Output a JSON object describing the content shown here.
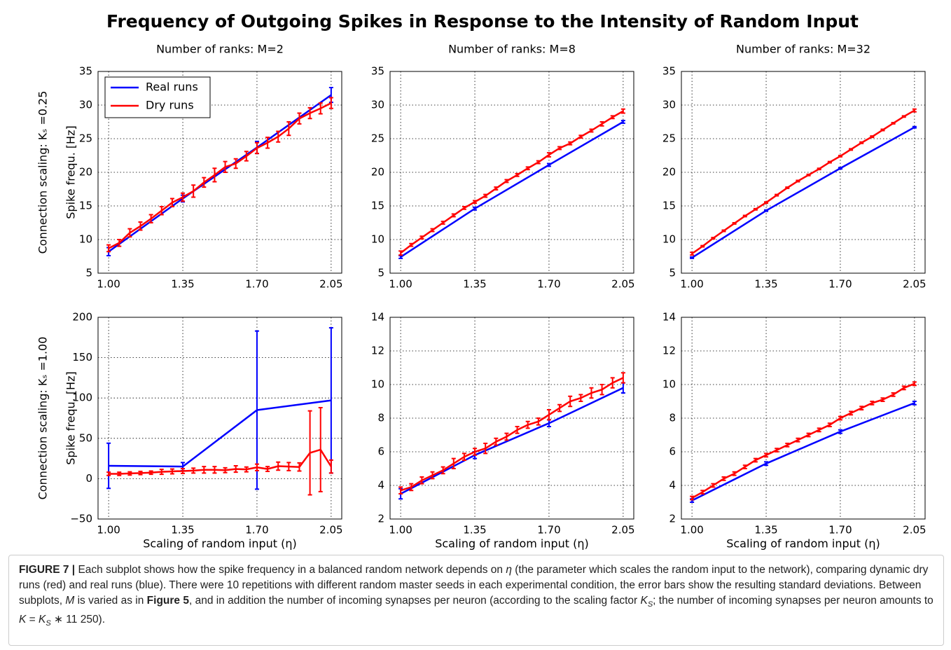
{
  "title": "Frequency of Outgoing Spikes in Response to the Intensity of Random Input",
  "chart_data": [
    {
      "type": "line",
      "title": "Number of ranks: M=2",
      "row_label": "Connection scaling: Kₛ =0.25",
      "ylabel": "Spike frequ. [Hz]",
      "legend": "upper left",
      "xlim": [
        0.95,
        2.1
      ],
      "ylim": [
        5,
        35
      ],
      "xticks": [
        {
          "value": 1.0,
          "label": "1.00"
        },
        {
          "value": 1.35,
          "label": "1.35"
        },
        {
          "value": 1.7,
          "label": "1.70"
        },
        {
          "value": 2.05,
          "label": "2.05"
        }
      ],
      "yticks": [
        5,
        10,
        15,
        20,
        25,
        30,
        35
      ],
      "grid": true,
      "series": [
        {
          "name": "Real runs",
          "color": "#0000ff",
          "x": [
            1.0,
            1.35,
            1.7,
            2.05
          ],
          "values": [
            8.2,
            16.1,
            23.7,
            31.5
          ],
          "errors": [
            0.6,
            0.5,
            0.9,
            1.1
          ]
        },
        {
          "name": "Dry runs",
          "color": "#ff0000",
          "x": [
            1.0,
            1.05,
            1.1,
            1.15,
            1.2,
            1.25,
            1.3,
            1.35,
            1.4,
            1.45,
            1.5,
            1.55,
            1.6,
            1.65,
            1.7,
            1.75,
            1.8,
            1.85,
            1.9,
            1.95,
            2.0,
            2.05
          ],
          "values": [
            8.7,
            9.5,
            11.0,
            12.0,
            13.1,
            14.3,
            15.5,
            16.3,
            17.2,
            18.5,
            19.6,
            20.8,
            21.3,
            22.4,
            23.6,
            24.4,
            25.3,
            26.5,
            28.0,
            28.8,
            29.5,
            30.3
          ],
          "errors": [
            0.5,
            0.5,
            0.6,
            0.6,
            0.6,
            0.6,
            0.6,
            0.6,
            0.9,
            0.7,
            1.0,
            0.8,
            0.7,
            0.7,
            0.8,
            0.8,
            0.8,
            1.0,
            0.8,
            0.8,
            0.8,
            0.8
          ]
        }
      ]
    },
    {
      "type": "line",
      "title": "Number of ranks: M=8",
      "xlim": [
        0.95,
        2.1
      ],
      "ylim": [
        5,
        35
      ],
      "xticks": [
        {
          "value": 1.0,
          "label": "1.00"
        },
        {
          "value": 1.35,
          "label": "1.35"
        },
        {
          "value": 1.7,
          "label": "1.70"
        },
        {
          "value": 2.05,
          "label": "2.05"
        }
      ],
      "yticks": [
        5,
        10,
        15,
        20,
        25,
        30,
        35
      ],
      "grid": true,
      "series": [
        {
          "color": "#0000ff",
          "x": [
            1.0,
            1.35,
            1.7,
            2.05
          ],
          "values": [
            7.4,
            14.6,
            21.1,
            27.5
          ],
          "errors": [
            0.2,
            0.2,
            0.2,
            0.2
          ]
        },
        {
          "color": "#ff0000",
          "x": [
            1.0,
            1.05,
            1.1,
            1.15,
            1.2,
            1.25,
            1.3,
            1.35,
            1.4,
            1.45,
            1.5,
            1.55,
            1.6,
            1.65,
            1.7,
            1.75,
            1.8,
            1.85,
            1.9,
            1.95,
            2.0,
            2.05
          ],
          "values": [
            8.0,
            9.2,
            10.3,
            11.4,
            12.5,
            13.6,
            14.7,
            15.6,
            16.5,
            17.6,
            18.7,
            19.6,
            20.6,
            21.5,
            22.6,
            23.6,
            24.3,
            25.3,
            26.2,
            27.2,
            28.2,
            29.1
          ],
          "errors": [
            0.3,
            0.2,
            0.2,
            0.2,
            0.2,
            0.2,
            0.2,
            0.2,
            0.2,
            0.2,
            0.2,
            0.2,
            0.2,
            0.2,
            0.3,
            0.2,
            0.2,
            0.2,
            0.2,
            0.3,
            0.2,
            0.3
          ]
        }
      ]
    },
    {
      "type": "line",
      "title": "Number of ranks: M=32",
      "xlim": [
        0.95,
        2.1
      ],
      "ylim": [
        5,
        35
      ],
      "xticks": [
        {
          "value": 1.0,
          "label": "1.00"
        },
        {
          "value": 1.35,
          "label": "1.35"
        },
        {
          "value": 1.7,
          "label": "1.70"
        },
        {
          "value": 2.05,
          "label": "2.05"
        }
      ],
      "yticks": [
        5,
        10,
        15,
        20,
        25,
        30,
        35
      ],
      "grid": true,
      "series": [
        {
          "color": "#0000ff",
          "x": [
            1.0,
            1.35,
            1.7,
            2.05
          ],
          "values": [
            7.3,
            14.3,
            20.6,
            26.7
          ],
          "errors": [
            0.1,
            0.1,
            0.1,
            0.1
          ]
        },
        {
          "color": "#ff0000",
          "x": [
            1.0,
            1.05,
            1.1,
            1.15,
            1.2,
            1.25,
            1.3,
            1.35,
            1.4,
            1.45,
            1.5,
            1.55,
            1.6,
            1.65,
            1.7,
            1.75,
            1.8,
            1.85,
            1.9,
            1.95,
            2.0,
            2.05
          ],
          "values": [
            7.9,
            9.0,
            10.2,
            11.3,
            12.4,
            13.5,
            14.5,
            15.5,
            16.6,
            17.7,
            18.7,
            19.6,
            20.5,
            21.5,
            22.4,
            23.4,
            24.4,
            25.3,
            26.3,
            27.3,
            28.3,
            29.2
          ],
          "errors": [
            0.2,
            0.1,
            0.1,
            0.1,
            0.1,
            0.1,
            0.1,
            0.1,
            0.1,
            0.1,
            0.1,
            0.1,
            0.1,
            0.1,
            0.1,
            0.1,
            0.1,
            0.1,
            0.1,
            0.1,
            0.1,
            0.2
          ]
        }
      ]
    },
    {
      "type": "line",
      "row_label": "Connection scaling: Kₛ =1.00",
      "ylabel": "Spike frequ. [Hz]",
      "xlabel": "Scaling of random input (η)",
      "xlim": [
        0.95,
        2.1
      ],
      "ylim": [
        -50,
        200
      ],
      "xticks": [
        {
          "value": 1.0,
          "label": "1.00"
        },
        {
          "value": 1.35,
          "label": "1.35"
        },
        {
          "value": 1.7,
          "label": "1.70"
        },
        {
          "value": 2.05,
          "label": "2.05"
        }
      ],
      "yticks": [
        {
          "value": -50,
          "label": "−50"
        },
        0,
        50,
        100,
        150,
        200
      ],
      "grid": true,
      "series": [
        {
          "color": "#0000ff",
          "x": [
            1.0,
            1.35,
            1.7,
            2.05
          ],
          "values": [
            16,
            15,
            85,
            97
          ],
          "errors": [
            28,
            5,
            98,
            90
          ]
        },
        {
          "color": "#ff0000",
          "x": [
            1.0,
            1.05,
            1.1,
            1.15,
            1.2,
            1.25,
            1.3,
            1.35,
            1.4,
            1.45,
            1.5,
            1.55,
            1.6,
            1.65,
            1.7,
            1.75,
            1.8,
            1.85,
            1.9,
            1.95,
            2.0,
            2.05
          ],
          "values": [
            6,
            6,
            6.5,
            7,
            7.5,
            8.5,
            9,
            9.5,
            10,
            11,
            11,
            10.5,
            12,
            11.5,
            14,
            12,
            15.5,
            15,
            14.5,
            32,
            36,
            15
          ],
          "errors": [
            2,
            2,
            2,
            2,
            2,
            3,
            3,
            3,
            3,
            4,
            4,
            3,
            4,
            3,
            4,
            3,
            5,
            5,
            5,
            52,
            52,
            8
          ]
        }
      ]
    },
    {
      "type": "line",
      "xlabel": "Scaling of random input (η)",
      "xlim": [
        0.95,
        2.1
      ],
      "ylim": [
        2,
        14
      ],
      "xticks": [
        {
          "value": 1.0,
          "label": "1.00"
        },
        {
          "value": 1.35,
          "label": "1.35"
        },
        {
          "value": 1.7,
          "label": "1.70"
        },
        {
          "value": 2.05,
          "label": "2.05"
        }
      ],
      "yticks": [
        2,
        4,
        6,
        8,
        10,
        12,
        14
      ],
      "grid": true,
      "series": [
        {
          "color": "#0000ff",
          "x": [
            1.0,
            1.35,
            1.7,
            2.05
          ],
          "values": [
            3.5,
            5.8,
            7.7,
            9.8
          ],
          "errors": [
            0.3,
            0.2,
            0.2,
            0.3
          ]
        },
        {
          "color": "#ff0000",
          "x": [
            1.0,
            1.05,
            1.1,
            1.15,
            1.2,
            1.25,
            1.3,
            1.35,
            1.4,
            1.45,
            1.5,
            1.55,
            1.6,
            1.65,
            1.7,
            1.75,
            1.8,
            1.85,
            1.9,
            1.95,
            2.0,
            2.05
          ],
          "values": [
            3.7,
            3.9,
            4.3,
            4.6,
            4.9,
            5.3,
            5.7,
            6.0,
            6.2,
            6.6,
            6.9,
            7.3,
            7.6,
            7.8,
            8.2,
            8.6,
            9.0,
            9.2,
            9.5,
            9.7,
            10.1,
            10.4
          ],
          "errors": [
            0.2,
            0.2,
            0.2,
            0.2,
            0.2,
            0.3,
            0.2,
            0.2,
            0.3,
            0.2,
            0.2,
            0.2,
            0.2,
            0.2,
            0.3,
            0.2,
            0.3,
            0.2,
            0.3,
            0.3,
            0.3,
            0.3
          ]
        }
      ]
    },
    {
      "type": "line",
      "xlabel": "Scaling of random input (η)",
      "xlim": [
        0.95,
        2.1
      ],
      "ylim": [
        2,
        14
      ],
      "xticks": [
        {
          "value": 1.0,
          "label": "1.00"
        },
        {
          "value": 1.35,
          "label": "1.35"
        },
        {
          "value": 1.7,
          "label": "1.70"
        },
        {
          "value": 2.05,
          "label": "2.05"
        }
      ],
      "yticks": [
        2,
        4,
        6,
        8,
        10,
        12,
        14
      ],
      "grid": true,
      "series": [
        {
          "color": "#0000ff",
          "x": [
            1.0,
            1.35,
            1.7,
            2.05
          ],
          "values": [
            3.1,
            5.3,
            7.2,
            8.9
          ],
          "errors": [
            0.1,
            0.1,
            0.1,
            0.1
          ]
        },
        {
          "color": "#ff0000",
          "x": [
            1.0,
            1.05,
            1.1,
            1.15,
            1.2,
            1.25,
            1.3,
            1.35,
            1.4,
            1.45,
            1.5,
            1.55,
            1.6,
            1.65,
            1.7,
            1.75,
            1.8,
            1.85,
            1.9,
            1.95,
            2.0,
            2.05
          ],
          "values": [
            3.25,
            3.6,
            4.0,
            4.4,
            4.7,
            5.1,
            5.5,
            5.8,
            6.1,
            6.4,
            6.7,
            7.0,
            7.3,
            7.6,
            8.0,
            8.3,
            8.6,
            8.9,
            9.1,
            9.4,
            9.8,
            10.05
          ],
          "errors": [
            0.1,
            0.1,
            0.1,
            0.1,
            0.1,
            0.1,
            0.1,
            0.1,
            0.1,
            0.1,
            0.1,
            0.1,
            0.1,
            0.1,
            0.1,
            0.1,
            0.1,
            0.1,
            0.1,
            0.1,
            0.1,
            0.1
          ]
        }
      ]
    }
  ],
  "caption": [
    {
      "text": "FIGURE 7 |",
      "style": "b"
    },
    {
      "text": " Each subplot shows how the spike frequency in a balanced random network depends on ",
      "style": "n"
    },
    {
      "text": "η",
      "style": "i"
    },
    {
      "text": " (the parameter which scales the random input to the network), comparing dynamic dry runs (red) and real runs (blue). There were 10 repetitions with different random master seeds in each experimental condition, the error bars show the resulting standard deviations. Between subplots, ",
      "style": "n"
    },
    {
      "text": "M",
      "style": "i"
    },
    {
      "text": " is varied as in ",
      "style": "n"
    },
    {
      "text": "Figure 5",
      "style": "b"
    },
    {
      "text": ", and in addition the number of incoming synapses per neuron (according to the scaling factor ",
      "style": "n"
    },
    {
      "text": "K",
      "style": "i"
    },
    {
      "text": "S",
      "style": "sub"
    },
    {
      "text": "; the number of incoming synapses per neuron amounts to ",
      "style": "n"
    },
    {
      "text": "K",
      "style": "i"
    },
    {
      "text": " = ",
      "style": "n"
    },
    {
      "text": "K",
      "style": "i"
    },
    {
      "text": "S",
      "style": "sub"
    },
    {
      "text": " ∗ 11 250).",
      "style": "n"
    }
  ]
}
